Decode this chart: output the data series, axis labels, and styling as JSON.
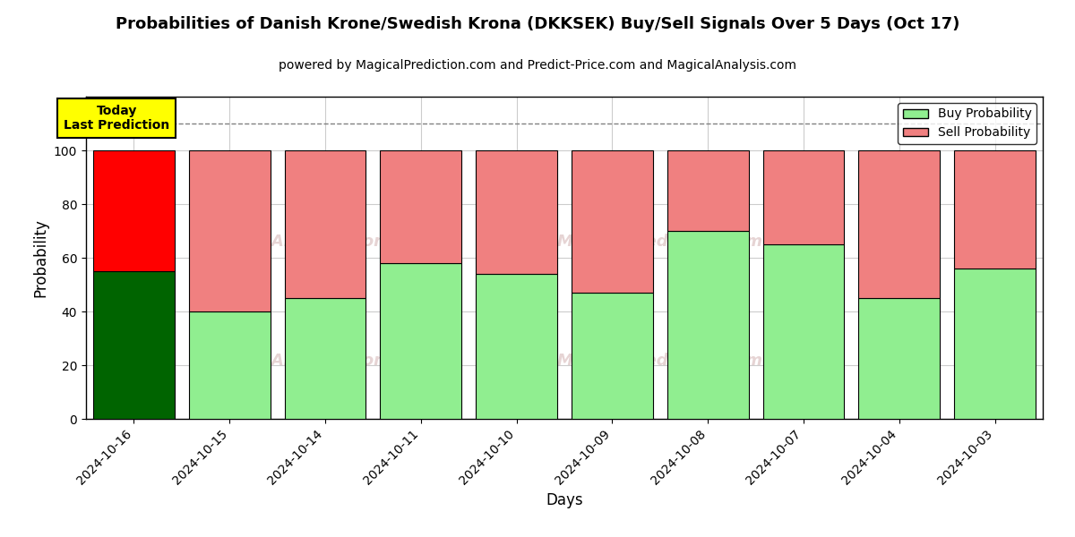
{
  "title": "Probabilities of Danish Krone/Swedish Krona (DKKSEK) Buy/Sell Signals Over 5 Days (Oct 17)",
  "subtitle": "powered by MagicalPrediction.com and Predict-Price.com and MagicalAnalysis.com",
  "xlabel": "Days",
  "ylabel": "Probability",
  "categories": [
    "2024-10-16",
    "2024-10-15",
    "2024-10-14",
    "2024-10-11",
    "2024-10-10",
    "2024-10-09",
    "2024-10-08",
    "2024-10-07",
    "2024-10-04",
    "2024-10-03"
  ],
  "buy_values": [
    55,
    40,
    45,
    58,
    54,
    47,
    70,
    65,
    45,
    56
  ],
  "sell_values": [
    45,
    60,
    55,
    42,
    46,
    53,
    30,
    35,
    55,
    44
  ],
  "buy_color_today": "#006400",
  "sell_color_today": "#ff0000",
  "buy_color_normal": "#90ee90",
  "sell_color_normal": "#f08080",
  "bar_edge_color": "black",
  "bar_linewidth": 0.8,
  "today_label_bg": "#ffff00",
  "today_label_text": "Today\nLast Prediction",
  "dashed_line_y": 110,
  "ylim": [
    0,
    120
  ],
  "yticks": [
    0,
    20,
    40,
    60,
    80,
    100
  ],
  "grid_color": "#cccccc",
  "legend_buy": "Buy Probability",
  "legend_sell": "Sell Probability",
  "figsize": [
    12,
    6
  ],
  "dpi": 100,
  "title_fontsize": 13,
  "subtitle_fontsize": 10,
  "axis_label_fontsize": 12,
  "tick_fontsize": 10,
  "bar_width": 0.85
}
